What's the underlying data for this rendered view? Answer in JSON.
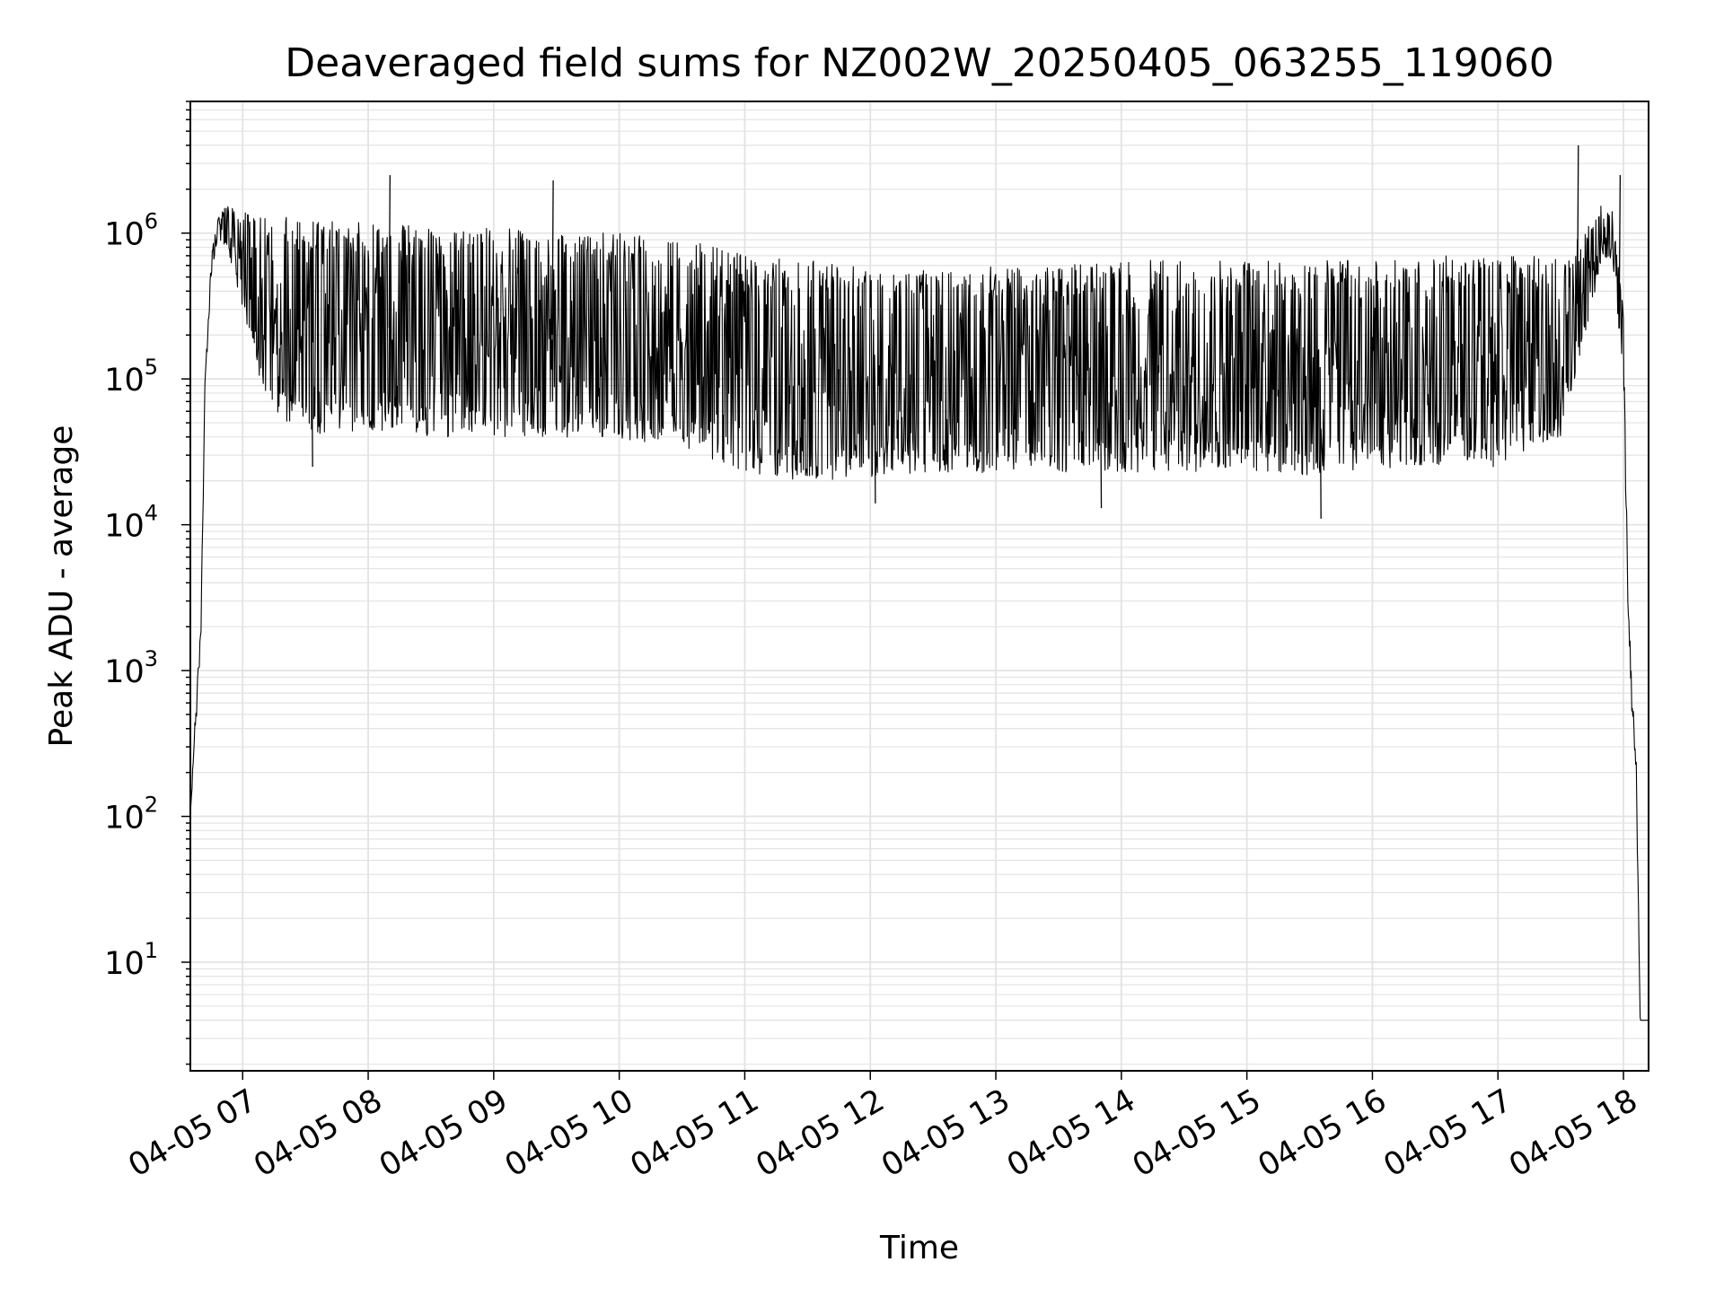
{
  "chart_data": {
    "type": "line",
    "title": "Deaveraged field sums for NZ002W_20250405_063255_119060",
    "xlabel": "Time",
    "ylabel": "Peak ADU - average",
    "yscale": "log",
    "xlim": [
      "04-05 06:35",
      "04-05 18:12"
    ],
    "ylim": [
      1.8,
      8000000
    ],
    "grid": true,
    "x_ticks": [
      "04-05 07",
      "04-05 08",
      "04-05 09",
      "04-05 10",
      "04-05 11",
      "04-05 12",
      "04-05 13",
      "04-05 14",
      "04-05 15",
      "04-05 16",
      "04-05 17",
      "04-05 18"
    ],
    "y_ticks": [
      {
        "value": 10,
        "base": "10",
        "exp": "1"
      },
      {
        "value": 100,
        "base": "10",
        "exp": "2"
      },
      {
        "value": 1000,
        "base": "10",
        "exp": "3"
      },
      {
        "value": 10000,
        "base": "10",
        "exp": "4"
      },
      {
        "value": 100000,
        "base": "10",
        "exp": "5"
      },
      {
        "value": 1000000,
        "base": "10",
        "exp": "6"
      }
    ],
    "line_color": "#000000",
    "grid_color": "#e3e3e3",
    "series": [
      {
        "x": [
          "04-05 06:35",
          "04-05 06:38",
          "04-05 06:40",
          "04-05 06:42",
          "04-05 06:45",
          "04-05 06:48",
          "04-05 06:52",
          "04-05 06:56",
          "04-05 07:00",
          "04-05 07:10",
          "04-05 07:20",
          "04-05 07:40",
          "04-05 08:00",
          "04-05 08:30",
          "04-05 09:00",
          "04-05 09:30",
          "04-05 10:00",
          "04-05 10:30",
          "04-05 10:50",
          "04-05 11:00",
          "04-05 11:30",
          "04-05 12:00",
          "04-05 12:30",
          "04-05 13:00",
          "04-05 13:30",
          "04-05 14:00",
          "04-05 14:30",
          "04-05 15:00",
          "04-05 15:30",
          "04-05 16:00",
          "04-05 16:30",
          "04-05 17:00",
          "04-05 17:30",
          "04-05 17:40",
          "04-05 17:50",
          "04-05 17:55",
          "04-05 18:00",
          "04-05 18:02",
          "04-05 18:04",
          "04-05 18:06",
          "04-05 18:08",
          "04-05 18:12"
        ],
        "upper": [
          100,
          800,
          2000,
          100000,
          700000,
          1300000,
          1600000,
          1500000,
          1400000,
          1300000,
          1300000,
          1200000,
          1200000,
          1100000,
          1100000,
          1000000,
          1000000,
          900000,
          800000,
          700000,
          650000,
          600000,
          550000,
          600000,
          600000,
          650000,
          650000,
          650000,
          650000,
          650000,
          700000,
          700000,
          700000,
          1000000,
          1600000,
          1400000,
          300000,
          5000,
          800,
          300,
          4,
          4
        ],
        "lower": [
          100,
          500,
          1500,
          80000,
          500000,
          900000,
          800000,
          500000,
          300000,
          80000,
          50000,
          40000,
          45000,
          40000,
          40000,
          40000,
          38000,
          35000,
          25000,
          22000,
          20000,
          21000,
          22000,
          23000,
          23000,
          23000,
          23000,
          23000,
          22000,
          24000,
          25000,
          25000,
          40000,
          150000,
          700000,
          600000,
          100000,
          3000,
          500,
          200,
          4,
          4
        ],
        "spikes": [
          {
            "x": "04-05 08:10",
            "y": 2500000
          },
          {
            "x": "04-05 09:28",
            "y": 2300000
          },
          {
            "x": "04-05 17:38",
            "y": 4000000
          },
          {
            "x": "04-05 17:58",
            "y": 2500000
          },
          {
            "x": "04-05 07:33",
            "y": 25000
          },
          {
            "x": "04-05 12:02",
            "y": 14000
          },
          {
            "x": "04-05 13:50",
            "y": 13000
          },
          {
            "x": "04-05 15:35",
            "y": 11000
          }
        ]
      }
    ]
  }
}
